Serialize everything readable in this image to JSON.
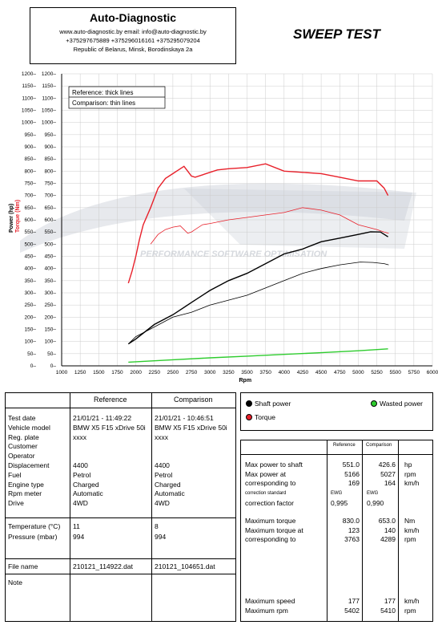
{
  "header": {
    "company": "Auto-Diagnostic",
    "web_email": "www.auto-diagnostic.by      email: info@auto-diagnostic.by",
    "phones": "+375297675889  +375296016161  +375295079204",
    "address": "Republic of Belarus, Minsk, Borodinskaya 2a",
    "sweep_title": "SWEEP TEST"
  },
  "chart_data": {
    "type": "line",
    "xlabel": "Rpm",
    "ylabel_power": "Power (hp)",
    "ylabel_torque": "Torque (Nm)",
    "xlim": [
      1000,
      6000
    ],
    "ylim": [
      0,
      1200
    ],
    "x_ticks": [
      1000,
      1250,
      1500,
      1750,
      2000,
      2250,
      2500,
      2750,
      3000,
      3250,
      3500,
      3750,
      4000,
      4250,
      4500,
      4750,
      5000,
      5250,
      5500,
      5750,
      6000
    ],
    "y_ticks": [
      0,
      50,
      100,
      150,
      200,
      250,
      300,
      350,
      400,
      450,
      500,
      550,
      600,
      650,
      700,
      750,
      800,
      850,
      900,
      950,
      1000,
      1050,
      1100,
      1150,
      1200
    ],
    "legend_reference": "Reference: thick lines",
    "legend_comparison": "Comparison: thin lines",
    "grid": true,
    "watermark": "PERFORMANCE SOFTWARE OPTIMISATION",
    "series": [
      {
        "name": "Torque",
        "variant": "reference",
        "color": "#e8202a",
        "x": [
          1900,
          1950,
          2000,
          2050,
          2100,
          2200,
          2300,
          2400,
          2500,
          2600,
          2650,
          2700,
          2750,
          2800,
          2900,
          3000,
          3100,
          3250,
          3500,
          3750,
          4000,
          4250,
          4500,
          4750,
          5000,
          5250,
          5350,
          5402
        ],
        "y": [
          340,
          390,
          450,
          520,
          580,
          650,
          730,
          770,
          790,
          810,
          820,
          800,
          780,
          775,
          785,
          795,
          805,
          810,
          815,
          830,
          800,
          795,
          790,
          775,
          760,
          760,
          730,
          700
        ]
      },
      {
        "name": "Torque",
        "variant": "comparison",
        "color": "#e8202a",
        "x": [
          2200,
          2300,
          2400,
          2500,
          2600,
          2700,
          2750,
          2800,
          2900,
          3000,
          3250,
          3500,
          3750,
          4000,
          4250,
          4500,
          4750,
          5000,
          5250,
          5350,
          5410
        ],
        "y": [
          500,
          540,
          560,
          570,
          575,
          545,
          550,
          560,
          580,
          585,
          600,
          610,
          620,
          630,
          650,
          640,
          620,
          580,
          560,
          550,
          545
        ]
      },
      {
        "name": "Shaft power",
        "variant": "reference",
        "color": "#000000",
        "x": [
          1900,
          2000,
          2250,
          2500,
          2750,
          3000,
          3250,
          3500,
          3750,
          4000,
          4250,
          4500,
          4750,
          5000,
          5166,
          5300,
          5402
        ],
        "y": [
          90,
          110,
          170,
          210,
          260,
          310,
          350,
          380,
          420,
          460,
          480,
          510,
          525,
          540,
          551,
          550,
          530
        ]
      },
      {
        "name": "Shaft power",
        "variant": "comparison",
        "color": "#000000",
        "x": [
          1900,
          2000,
          2250,
          2500,
          2750,
          3000,
          3250,
          3500,
          3750,
          4000,
          4250,
          4500,
          4750,
          5027,
          5200,
          5350,
          5410
        ],
        "y": [
          90,
          120,
          160,
          200,
          220,
          250,
          270,
          290,
          320,
          350,
          380,
          400,
          415,
          426.6,
          425,
          420,
          415
        ]
      },
      {
        "name": "Wasted power",
        "variant": "reference",
        "color": "#2ecc2e",
        "x": [
          1900,
          2500,
          3000,
          3500,
          4000,
          4500,
          5000,
          5402
        ],
        "y": [
          15,
          25,
          33,
          40,
          47,
          54,
          62,
          70
        ]
      }
    ]
  },
  "legend": {
    "shaft_power": "Shaft power",
    "torque": "Torque",
    "wasted_power": "Wasted power",
    "colors": {
      "shaft": "#000000",
      "torque": "#e8202a",
      "wasted": "#2ecc2e"
    }
  },
  "vehicle_table": {
    "header_reference": "Reference",
    "header_comparison": "Comparison",
    "labels": [
      "Test date",
      "Vehicle model",
      "Reg. plate",
      "Customer",
      "Operator",
      "Displacement",
      "Fuel",
      "Engine type",
      "Rpm meter",
      "Drive"
    ],
    "reference": [
      "21/01/21 - 11:49:22",
      "BMW X5 F15 xDrive 50i",
      "xxxx",
      "",
      "",
      "4400",
      "Petrol",
      "Charged",
      "Automatic",
      "4WD"
    ],
    "comparison": [
      "21/01/21 - 10:46:51",
      "BMW X5 F15 xDrive 50i",
      "xxxx",
      "",
      "",
      "4400",
      "Petrol",
      "Charged",
      "Automatic",
      "4WD"
    ],
    "env_labels": [
      "Temperature (°C)",
      "Pressure (mbar)"
    ],
    "env_reference": [
      "11",
      "994"
    ],
    "env_comparison": [
      "8",
      "994"
    ],
    "file_label": "File name",
    "file_reference": "210121_114922.dat",
    "file_comparison": "210121_104651.dat",
    "note_label": "Note"
  },
  "results_table": {
    "header_reference": "Reference",
    "header_comparison": "Comparison",
    "rows1": [
      {
        "label": "Max power to shaft",
        "ref": "551.0",
        "cmp": "426.6",
        "unit": "hp"
      },
      {
        "label": "Max power at",
        "ref": "5166",
        "cmp": "5027",
        "unit": "rpm"
      },
      {
        "label": "corresponding to",
        "ref": "169",
        "cmp": "164",
        "unit": "km/h"
      }
    ],
    "correction_standard_label": "correction standard",
    "correction_standard_ref": "EWG",
    "correction_standard_cmp": "EWG",
    "correction_factor_label": "correction factor",
    "correction_factor_ref": "0,995",
    "correction_factor_cmp": "0,990",
    "rows2": [
      {
        "label": "Maximum torque",
        "ref": "830.0",
        "cmp": "653.0",
        "unit": "Nm"
      },
      {
        "label": "Maximum torque at",
        "ref": "123",
        "cmp": "140",
        "unit": "km/h"
      },
      {
        "label": "corresponding to",
        "ref": "3763",
        "cmp": "4289",
        "unit": "rpm"
      }
    ],
    "rows3": [
      {
        "label": "Maximum speed",
        "ref": "177",
        "cmp": "177",
        "unit": "km/h"
      },
      {
        "label": "Maximum rpm",
        "ref": "5402",
        "cmp": "5410",
        "unit": "rpm"
      }
    ]
  }
}
